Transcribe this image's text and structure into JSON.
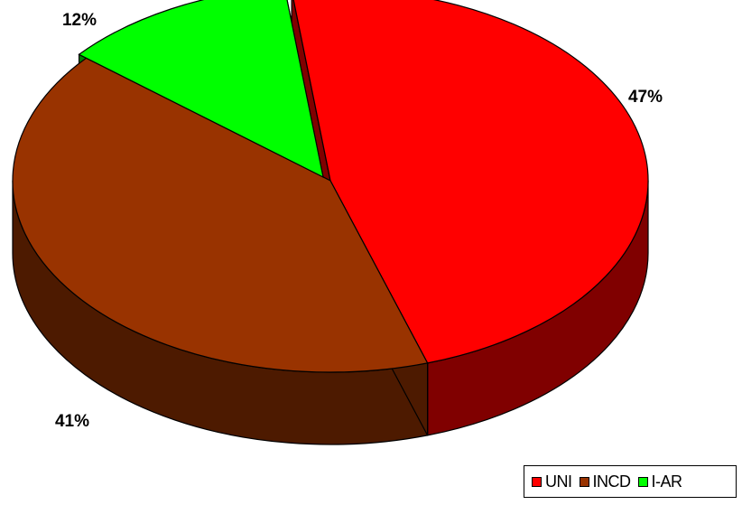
{
  "chart_data": {
    "type": "pie",
    "title": "",
    "slices": [
      {
        "label": "UNI",
        "value": 47,
        "value_label": "47%",
        "color": "#FF0000",
        "side_color": "#800000"
      },
      {
        "label": "INCD",
        "value": 41,
        "value_label": "41%",
        "color": "#993300",
        "side_color": "#4D1A00"
      },
      {
        "label": "I-AR",
        "value": 12,
        "value_label": "12%",
        "color": "#00FF00",
        "side_color": "#008000"
      }
    ],
    "style": "3d-exploded",
    "legend_position": "bottom-right"
  }
}
